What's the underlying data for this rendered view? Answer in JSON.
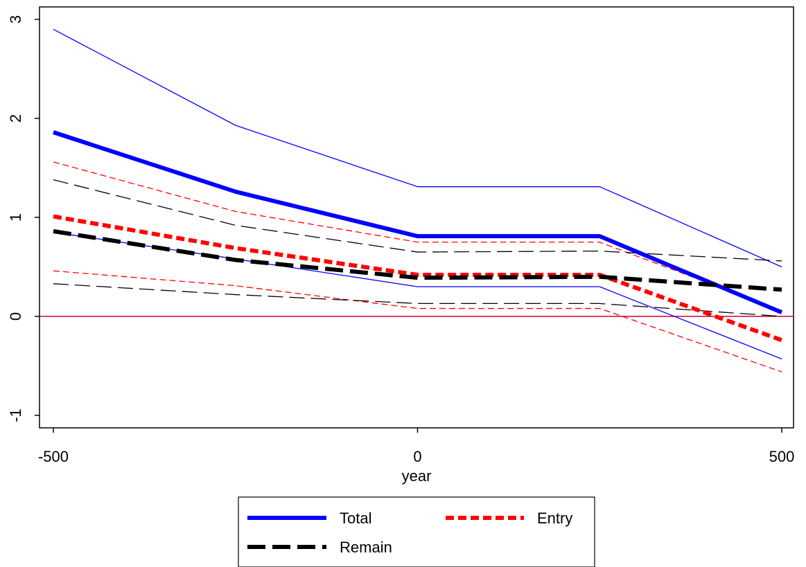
{
  "chart_data": {
    "type": "line",
    "title": "",
    "xlabel": "year",
    "ylabel": "",
    "xlim": [
      -500,
      500
    ],
    "ylim": [
      -1.2,
      3.1
    ],
    "x_ticks": [
      "-500",
      "0",
      "500"
    ],
    "y_ticks": [
      "-1",
      "0",
      "1",
      "2",
      "3"
    ],
    "x": [
      -500,
      -250,
      0,
      250,
      500
    ],
    "reference_line": {
      "y": 0,
      "color": "#cc0033"
    },
    "grid": false,
    "legend_position": "bottom",
    "legend_order": [
      "Total",
      "Entry",
      "Remain"
    ],
    "series": [
      {
        "name": "Total",
        "color": "#0000ff",
        "dash": "solid",
        "values": [
          1.86,
          1.26,
          0.81,
          0.81,
          0.04
        ]
      },
      {
        "color": "#0000ff",
        "dash": "solid",
        "values": [
          2.9,
          1.93,
          1.31,
          1.31,
          0.5
        ]
      },
      {
        "color": "#0000ff",
        "dash": "solid",
        "values": [
          0.85,
          0.58,
          0.3,
          0.3,
          -0.43
        ]
      },
      {
        "name": "Entry",
        "color": "#ff0000",
        "dash": "short",
        "values": [
          1.01,
          0.69,
          0.42,
          0.42,
          -0.24
        ]
      },
      {
        "color": "#ff0000",
        "dash": "short",
        "values": [
          1.56,
          1.06,
          0.75,
          0.75,
          0.06
        ]
      },
      {
        "color": "#ff0000",
        "dash": "short",
        "values": [
          0.46,
          0.31,
          0.08,
          0.08,
          -0.56
        ]
      },
      {
        "name": "Remain",
        "color": "#000000",
        "dash": "long",
        "values": [
          0.86,
          0.57,
          0.39,
          0.4,
          0.27
        ]
      },
      {
        "color": "#000000",
        "dash": "long",
        "values": [
          1.38,
          0.92,
          0.65,
          0.66,
          0.56
        ]
      },
      {
        "color": "#000000",
        "dash": "long",
        "values": [
          0.33,
          0.22,
          0.13,
          0.13,
          0.0
        ]
      }
    ]
  }
}
